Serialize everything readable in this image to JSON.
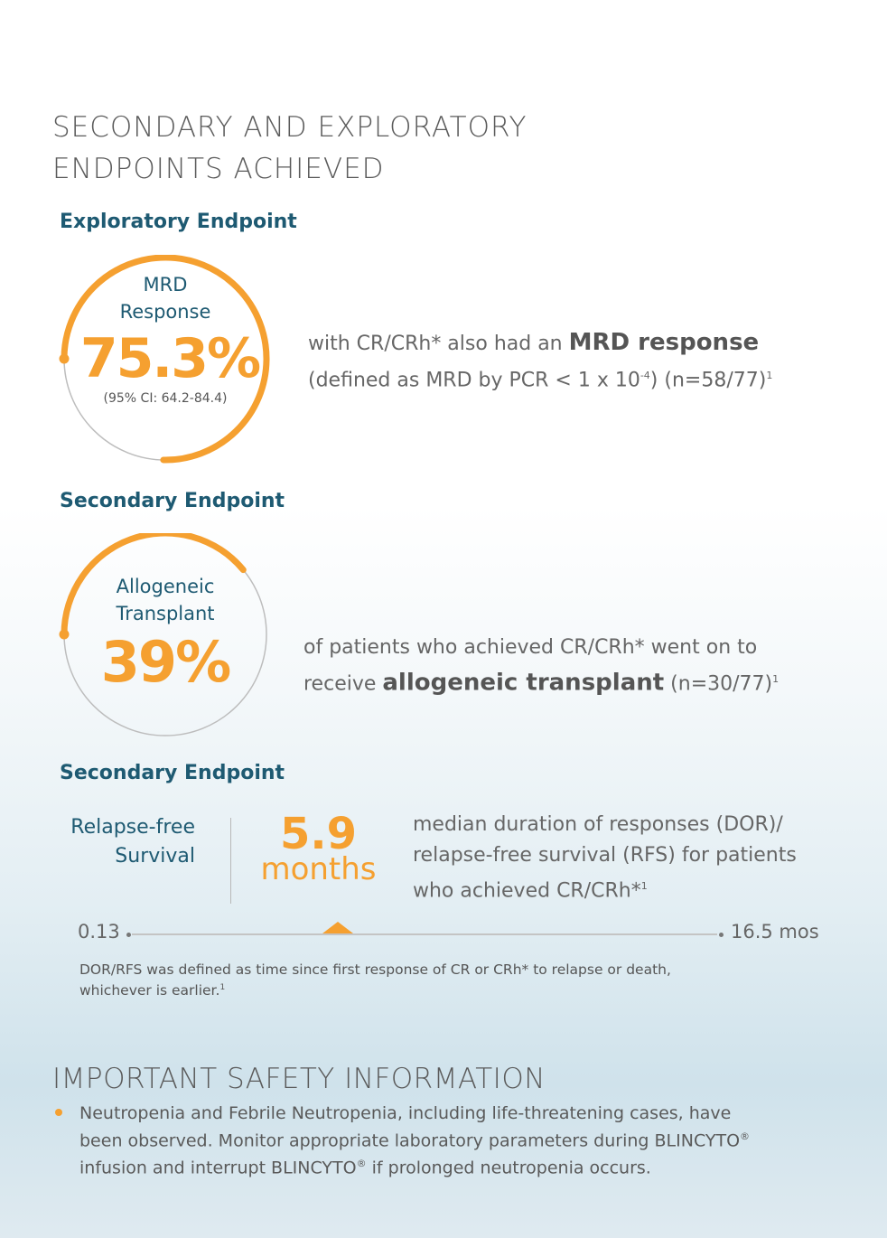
{
  "title": {
    "line1": "SECONDARY AND EXPLORATORY",
    "line2": "ENDPOINTS ACHIEVED"
  },
  "colors": {
    "accent": "#f5a030",
    "heading": "#1e5a72",
    "text": "#666666"
  },
  "mrd": {
    "section_label": "Exploratory Endpoint",
    "circle_label_1": "MRD",
    "circle_label_2": "Response",
    "value": "75.3%",
    "ci": "(95% CI: 64.2-84.4)",
    "desc_pre": "with CR/CRh* also had an ",
    "desc_bold": "MRD response",
    "desc_line2_a": "(defined as MRD by PCR < 1 x 10",
    "desc_exp": "-4",
    "desc_line2_b": ") (n=58/77)",
    "desc_ref": "1",
    "progress_fraction": 0.753
  },
  "transplant": {
    "section_label": "Secondary Endpoint",
    "circle_label_1": "Allogeneic",
    "circle_label_2": "Transplant",
    "value": "39%",
    "desc_line1": "of patients who achieved CR/CRh* went on to",
    "desc_pre": "receive ",
    "desc_bold": "allogeneic transplant",
    "desc_post": " (n=30/77)",
    "desc_ref": "1",
    "progress_fraction": 0.39
  },
  "rfs": {
    "section_label": "Secondary Endpoint",
    "label_1": "Relapse-free",
    "label_2": "Survival",
    "value": "5.9",
    "unit": "months",
    "desc_1": "median duration of responses (DOR)/",
    "desc_2": "relapse-free survival (RFS) for patients",
    "desc_3": "who achieved CR/CRh*",
    "desc_ref": "1",
    "range_min": "0.13",
    "range_max": "16.5 mos",
    "range_min_value": 0.13,
    "range_max_value": 16.5,
    "median_value": 5.9,
    "footnote_1": "DOR/RFS was defined as time since first response of CR or CRh* to relapse or death,",
    "footnote_2": "whichever is earlier.",
    "footnote_ref": "1"
  },
  "isi": {
    "title": "IMPORTANT SAFETY INFORMATION",
    "bullet_1_a": "Neutropenia and Febrile Neutropenia, including life-threatening cases, have",
    "bullet_1_b": "been observed. Monitor appropriate laboratory parameters during BLINCYTO",
    "reg": "®",
    "bullet_1_c": "infusion and interrupt BLINCYTO",
    "bullet_1_d": " if prolonged neutropenia occurs."
  }
}
